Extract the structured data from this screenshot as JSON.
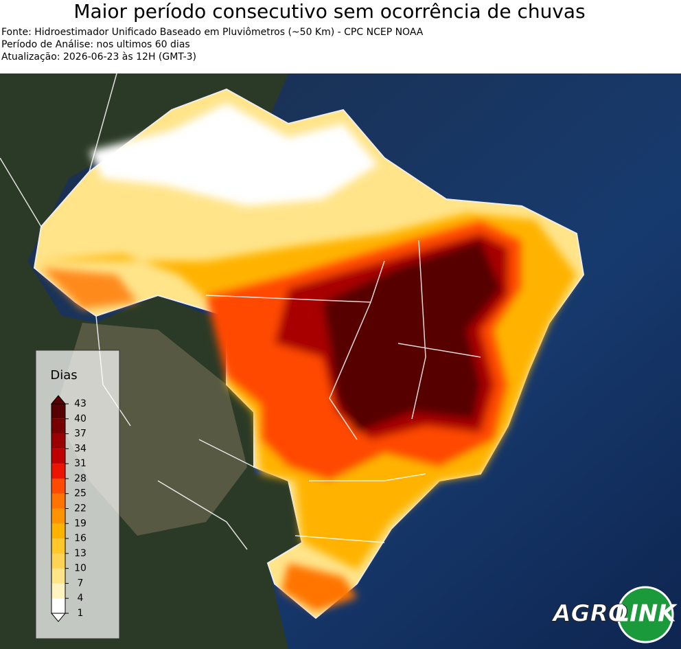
{
  "header": {
    "title": "Maior período consecutivo sem ocorrência de chuvas",
    "lines": [
      "Fonte: Hidroestimador Unificado Baseado em Pluviômetros (~50 Km) - CPC NCEP NOAA",
      "Período de Análise: nos ultimos 60 dias",
      "Atualização: 2026-06-23 às 12H (GMT-3)"
    ]
  },
  "legend": {
    "title": "Dias",
    "ticks": [
      1,
      4,
      7,
      10,
      13,
      16,
      19,
      22,
      25,
      28,
      31,
      34,
      37,
      40,
      43
    ],
    "colors": [
      "#ffffff",
      "#fff3c0",
      "#ffe48a",
      "#ffd455",
      "#ffc72a",
      "#ffb300",
      "#ff9400",
      "#ff7400",
      "#ff4a00",
      "#ea1400",
      "#c00000",
      "#9a0000",
      "#760000",
      "#560000"
    ]
  },
  "logo": {
    "left": "AGRO",
    "right": "LINK"
  }
}
